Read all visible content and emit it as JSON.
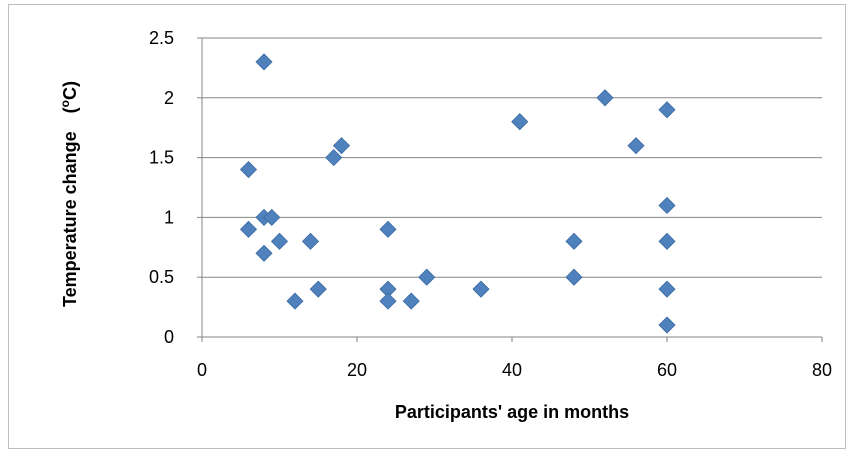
{
  "chart_data": {
    "type": "scatter",
    "xlabel": "Participants' age in months",
    "ylabel": "Temperature change",
    "ylabel_unit_base": "(",
    "ylabel_unit_sup": "o",
    "ylabel_unit_tail": "C)",
    "xlim": [
      0,
      80
    ],
    "ylim": [
      0,
      2.5
    ],
    "x_ticks": [
      0,
      20,
      40,
      60,
      80
    ],
    "y_ticks": [
      0,
      0.5,
      1,
      1.5,
      2,
      2.5
    ],
    "x_tick_labels": [
      "0",
      "20",
      "40",
      "60",
      "80"
    ],
    "y_tick_labels": [
      "0",
      "0.5",
      "1",
      "1.5",
      "2",
      "2.5"
    ],
    "grid": "horizontal",
    "marker": "diamond",
    "marker_color": "#4f81bd",
    "points": [
      {
        "x": 6,
        "y": 1.4
      },
      {
        "x": 6,
        "y": 0.9
      },
      {
        "x": 8,
        "y": 2.3
      },
      {
        "x": 8,
        "y": 1.0
      },
      {
        "x": 8,
        "y": 0.7
      },
      {
        "x": 9,
        "y": 1.0
      },
      {
        "x": 10,
        "y": 0.8
      },
      {
        "x": 12,
        "y": 0.3
      },
      {
        "x": 14,
        "y": 0.8
      },
      {
        "x": 15,
        "y": 0.4
      },
      {
        "x": 17,
        "y": 1.5
      },
      {
        "x": 18,
        "y": 1.6
      },
      {
        "x": 24,
        "y": 0.9
      },
      {
        "x": 24,
        "y": 0.4
      },
      {
        "x": 24,
        "y": 0.3
      },
      {
        "x": 27,
        "y": 0.3
      },
      {
        "x": 29,
        "y": 0.5
      },
      {
        "x": 36,
        "y": 0.4
      },
      {
        "x": 41,
        "y": 1.8
      },
      {
        "x": 48,
        "y": 0.8
      },
      {
        "x": 48,
        "y": 0.5
      },
      {
        "x": 52,
        "y": 2.0
      },
      {
        "x": 56,
        "y": 1.6
      },
      {
        "x": 60,
        "y": 1.9
      },
      {
        "x": 60,
        "y": 1.1
      },
      {
        "x": 60,
        "y": 0.8
      },
      {
        "x": 60,
        "y": 0.4
      },
      {
        "x": 60,
        "y": 0.1
      }
    ]
  }
}
